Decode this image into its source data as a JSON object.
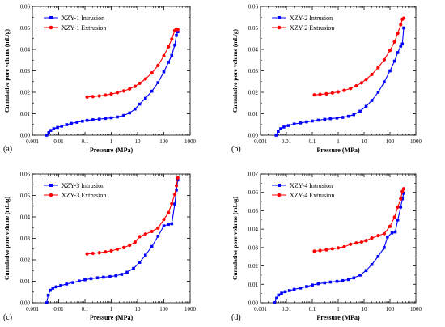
{
  "chart_data": [
    {
      "type": "line",
      "panel_label": "(a)",
      "xlabel": "Pressure (MPa)",
      "ylabel": "Cumulative pore volume (mL/g)",
      "x_scale": "log",
      "xlim": [
        0.001,
        1000
      ],
      "ylim": [
        0,
        0.06
      ],
      "x_ticks": [
        0.001,
        0.01,
        0.1,
        1,
        10,
        100,
        1000
      ],
      "x_tick_labels": [
        "0.001",
        "0.01",
        "0.1",
        "1",
        "10",
        "100",
        "1000"
      ],
      "y_ticks": [
        0,
        0.01,
        0.02,
        0.03,
        0.04,
        0.05,
        0.06
      ],
      "y_tick_labels": [
        "0.00",
        "0.01",
        "0.02",
        "0.03",
        "0.04",
        "0.05",
        "0.06"
      ],
      "legend_position": "top-left",
      "series": [
        {
          "name": "XZY-1 Intrusion",
          "color": "#0000ff",
          "marker": "square",
          "points": [
            [
              0.0035,
              0.0
            ],
            [
              0.0042,
              0.0012
            ],
            [
              0.005,
              0.0022
            ],
            [
              0.0065,
              0.003
            ],
            [
              0.009,
              0.0036
            ],
            [
              0.013,
              0.0042
            ],
            [
              0.02,
              0.0049
            ],
            [
              0.03,
              0.0055
            ],
            [
              0.05,
              0.006
            ],
            [
              0.08,
              0.0065
            ],
            [
              0.12,
              0.0069
            ],
            [
              0.2,
              0.0072
            ],
            [
              0.35,
              0.0075
            ],
            [
              0.6,
              0.0078
            ],
            [
              1,
              0.0081
            ],
            [
              1.7,
              0.0085
            ],
            [
              3,
              0.0092
            ],
            [
              5,
              0.0104
            ],
            [
              8,
              0.0122
            ],
            [
              12,
              0.0145
            ],
            [
              20,
              0.0172
            ],
            [
              35,
              0.0205
            ],
            [
              60,
              0.0245
            ],
            [
              100,
              0.0295
            ],
            [
              150,
              0.034
            ],
            [
              200,
              0.0372
            ],
            [
              260,
              0.042
            ],
            [
              300,
              0.0465
            ],
            [
              340,
              0.0482
            ]
          ]
        },
        {
          "name": "XZY-1 Extrusion",
          "color": "#ff0000",
          "marker": "circle",
          "points": [
            [
              0.12,
              0.0178
            ],
            [
              0.2,
              0.018
            ],
            [
              0.35,
              0.0183
            ],
            [
              0.6,
              0.0187
            ],
            [
              1,
              0.0192
            ],
            [
              1.7,
              0.0198
            ],
            [
              3,
              0.0206
            ],
            [
              5,
              0.0216
            ],
            [
              8,
              0.0228
            ],
            [
              12,
              0.0242
            ],
            [
              20,
              0.0262
            ],
            [
              35,
              0.029
            ],
            [
              60,
              0.0325
            ],
            [
              100,
              0.037
            ],
            [
              150,
              0.0412
            ],
            [
              200,
              0.0448
            ],
            [
              260,
              0.0488
            ],
            [
              300,
              0.0495
            ],
            [
              340,
              0.0492
            ]
          ]
        }
      ]
    },
    {
      "type": "line",
      "panel_label": "(b)",
      "xlabel": "Pressure (MPa)",
      "ylabel": "Cumulative pore volume (mL/g)",
      "x_scale": "log",
      "xlim": [
        0.001,
        1000
      ],
      "ylim": [
        0,
        0.06
      ],
      "x_ticks": [
        0.001,
        0.01,
        0.1,
        1,
        10,
        100,
        1000
      ],
      "x_tick_labels": [
        "0.001",
        "0.01",
        "0.1",
        "1",
        "10",
        "100",
        "1000"
      ],
      "y_ticks": [
        0,
        0.01,
        0.02,
        0.03,
        0.04,
        0.05,
        0.06
      ],
      "y_tick_labels": [
        "0.00",
        "0.01",
        "0.02",
        "0.03",
        "0.04",
        "0.05",
        "0.06"
      ],
      "legend_position": "top-left",
      "series": [
        {
          "name": "XZY-2 Intrusion",
          "color": "#0000ff",
          "marker": "square",
          "points": [
            [
              0.004,
              0.0
            ],
            [
              0.0048,
              0.0018
            ],
            [
              0.006,
              0.003
            ],
            [
              0.008,
              0.0038
            ],
            [
              0.012,
              0.0045
            ],
            [
              0.02,
              0.0052
            ],
            [
              0.035,
              0.0057
            ],
            [
              0.06,
              0.0062
            ],
            [
              0.1,
              0.0066
            ],
            [
              0.17,
              0.007
            ],
            [
              0.3,
              0.0074
            ],
            [
              0.5,
              0.0077
            ],
            [
              0.9,
              0.008
            ],
            [
              1.5,
              0.0083
            ],
            [
              2.5,
              0.0088
            ],
            [
              4,
              0.0096
            ],
            [
              7,
              0.0112
            ],
            [
              12,
              0.0135
            ],
            [
              20,
              0.0162
            ],
            [
              35,
              0.02
            ],
            [
              60,
              0.0248
            ],
            [
              100,
              0.03
            ],
            [
              150,
              0.0345
            ],
            [
              200,
              0.0385
            ],
            [
              260,
              0.0415
            ],
            [
              300,
              0.0425
            ],
            [
              340,
              0.05
            ]
          ]
        },
        {
          "name": "XZY-2 Extrusion",
          "color": "#ff0000",
          "marker": "circle",
          "points": [
            [
              0.12,
              0.0188
            ],
            [
              0.2,
              0.019
            ],
            [
              0.35,
              0.0193
            ],
            [
              0.6,
              0.0197
            ],
            [
              1,
              0.0202
            ],
            [
              1.7,
              0.0209
            ],
            [
              3,
              0.0218
            ],
            [
              5,
              0.023
            ],
            [
              8,
              0.0244
            ],
            [
              12,
              0.026
            ],
            [
              20,
              0.0283
            ],
            [
              35,
              0.0315
            ],
            [
              60,
              0.0352
            ],
            [
              100,
              0.0395
            ],
            [
              150,
              0.0435
            ],
            [
              200,
              0.0475
            ],
            [
              260,
              0.0515
            ],
            [
              300,
              0.054
            ],
            [
              340,
              0.0545
            ]
          ]
        }
      ]
    },
    {
      "type": "line",
      "panel_label": "(c)",
      "xlabel": "Pressure (MPa)",
      "ylabel": "Cumulative pore volume (mL/g)",
      "x_scale": "log",
      "xlim": [
        0.001,
        1000
      ],
      "ylim": [
        0,
        0.06
      ],
      "x_ticks": [
        0.001,
        0.01,
        0.1,
        1,
        10,
        100,
        1000
      ],
      "x_tick_labels": [
        "0.001",
        "0.01",
        "0.1",
        "1",
        "10",
        "100",
        "1000"
      ],
      "y_ticks": [
        0,
        0.01,
        0.02,
        0.03,
        0.04,
        0.05,
        0.06
      ],
      "y_tick_labels": [
        "0.00",
        "0.01",
        "0.02",
        "0.03",
        "0.04",
        "0.05",
        "0.06"
      ],
      "legend_position": "top-left",
      "series": [
        {
          "name": "XZY-3 Intrusion",
          "color": "#0000ff",
          "marker": "square",
          "points": [
            [
              0.0035,
              0.0
            ],
            [
              0.004,
              0.0035
            ],
            [
              0.0048,
              0.0058
            ],
            [
              0.006,
              0.0068
            ],
            [
              0.008,
              0.0074
            ],
            [
              0.012,
              0.008
            ],
            [
              0.02,
              0.0087
            ],
            [
              0.035,
              0.0094
            ],
            [
              0.06,
              0.0101
            ],
            [
              0.1,
              0.0107
            ],
            [
              0.17,
              0.0112
            ],
            [
              0.3,
              0.0116
            ],
            [
              0.5,
              0.0119
            ],
            [
              0.9,
              0.0122
            ],
            [
              1.5,
              0.0126
            ],
            [
              2.5,
              0.0132
            ],
            [
              4,
              0.0142
            ],
            [
              7,
              0.016
            ],
            [
              12,
              0.0188
            ],
            [
              20,
              0.0222
            ],
            [
              35,
              0.0262
            ],
            [
              60,
              0.031
            ],
            [
              100,
              0.0358
            ],
            [
              150,
              0.0365
            ],
            [
              200,
              0.0368
            ],
            [
              260,
              0.046
            ],
            [
              300,
              0.0525
            ],
            [
              340,
              0.0572
            ]
          ]
        },
        {
          "name": "XZY-3 Extrusion",
          "color": "#ff0000",
          "marker": "circle",
          "points": [
            [
              0.12,
              0.0228
            ],
            [
              0.2,
              0.023
            ],
            [
              0.35,
              0.0233
            ],
            [
              0.6,
              0.0237
            ],
            [
              1,
              0.0242
            ],
            [
              1.7,
              0.0249
            ],
            [
              3,
              0.0257
            ],
            [
              5,
              0.0268
            ],
            [
              8,
              0.0282
            ],
            [
              12,
              0.0308
            ],
            [
              20,
              0.032
            ],
            [
              35,
              0.0332
            ],
            [
              60,
              0.0348
            ],
            [
              100,
              0.0388
            ],
            [
              150,
              0.042
            ],
            [
              200,
              0.0462
            ],
            [
              260,
              0.0505
            ],
            [
              300,
              0.0545
            ],
            [
              340,
              0.0582
            ]
          ]
        }
      ]
    },
    {
      "type": "line",
      "panel_label": "(d)",
      "xlabel": "Pressure (MPa)",
      "ylabel": "Cumulative pore volume (mL/g)",
      "x_scale": "log",
      "xlim": [
        0.001,
        1000
      ],
      "ylim": [
        0,
        0.07
      ],
      "x_ticks": [
        0.001,
        0.01,
        0.1,
        1,
        10,
        100,
        1000
      ],
      "x_tick_labels": [
        "0.001",
        "0.01",
        "0.1",
        "1",
        "10",
        "100",
        "1000"
      ],
      "y_ticks": [
        0,
        0.01,
        0.02,
        0.03,
        0.04,
        0.05,
        0.06,
        0.07
      ],
      "y_tick_labels": [
        "0.00",
        "0.01",
        "0.02",
        "0.03",
        "0.04",
        "0.05",
        "0.06",
        "0.07"
      ],
      "legend_position": "top-left",
      "series": [
        {
          "name": "XZY-4 Intrusion",
          "color": "#0000ff",
          "marker": "square",
          "points": [
            [
              0.0035,
              0.0
            ],
            [
              0.0042,
              0.0025
            ],
            [
              0.005,
              0.0042
            ],
            [
              0.0065,
              0.0052
            ],
            [
              0.009,
              0.006
            ],
            [
              0.013,
              0.0066
            ],
            [
              0.02,
              0.0073
            ],
            [
              0.035,
              0.008
            ],
            [
              0.06,
              0.0088
            ],
            [
              0.1,
              0.0096
            ],
            [
              0.17,
              0.0103
            ],
            [
              0.3,
              0.0108
            ],
            [
              0.5,
              0.0112
            ],
            [
              0.9,
              0.0116
            ],
            [
              1.5,
              0.012
            ],
            [
              2.5,
              0.0126
            ],
            [
              4,
              0.0135
            ],
            [
              7,
              0.015
            ],
            [
              12,
              0.0175
            ],
            [
              20,
              0.0208
            ],
            [
              35,
              0.0252
            ],
            [
              60,
              0.03
            ],
            [
              80,
              0.0358
            ],
            [
              120,
              0.038
            ],
            [
              160,
              0.0385
            ],
            [
              200,
              0.045
            ],
            [
              260,
              0.052
            ],
            [
              300,
              0.0565
            ],
            [
              340,
              0.0595
            ]
          ]
        },
        {
          "name": "XZY-4 Extrusion",
          "color": "#ff0000",
          "marker": "circle",
          "points": [
            [
              0.12,
              0.028
            ],
            [
              0.2,
              0.0284
            ],
            [
              0.35,
              0.0288
            ],
            [
              0.6,
              0.0293
            ],
            [
              1,
              0.0298
            ],
            [
              1.7,
              0.0304
            ],
            [
              3,
              0.0318
            ],
            [
              5,
              0.0325
            ],
            [
              8,
              0.033
            ],
            [
              12,
              0.0338
            ],
            [
              20,
              0.0352
            ],
            [
              35,
              0.0365
            ],
            [
              60,
              0.0376
            ],
            [
              100,
              0.0415
            ],
            [
              150,
              0.0465
            ],
            [
              200,
              0.052
            ],
            [
              260,
              0.0565
            ],
            [
              300,
              0.0605
            ],
            [
              340,
              0.062
            ]
          ]
        }
      ]
    }
  ]
}
